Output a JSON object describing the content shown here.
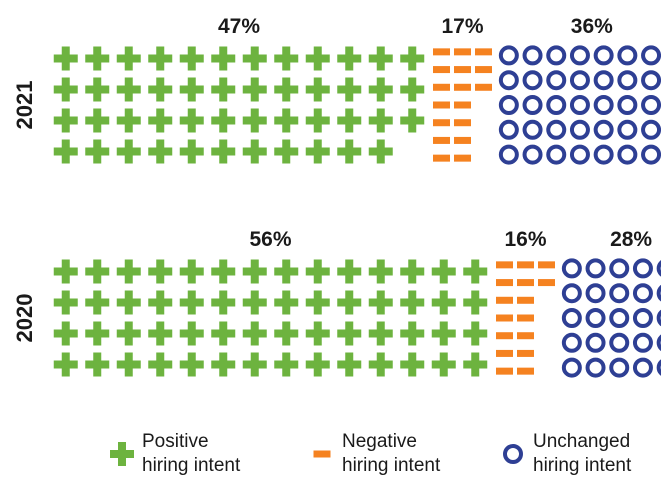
{
  "chart_data": {
    "type": "waffle",
    "series": [
      {
        "key": "positive",
        "name": "Positive hiring intent",
        "label_line1": "Positive",
        "label_line2": "hiring intent",
        "color": "#6db33f",
        "icon": "plus-icon"
      },
      {
        "key": "negative",
        "name": "Negative hiring intent",
        "label_line1": "Negative",
        "label_line2": "hiring intent",
        "color": "#f58220",
        "icon": "dash-icon"
      },
      {
        "key": "unchanged",
        "name": "Unchanged hiring intent",
        "label_line1": "Unchanged",
        "label_line2": "hiring intent",
        "color": "#2e3f94",
        "icon": "ring-icon"
      }
    ],
    "groups": [
      {
        "year": "2021",
        "values": {
          "positive": 47,
          "negative": 17,
          "unchanged": 36
        },
        "labels": {
          "positive": "47%",
          "negative": "17%",
          "unchanged": "36%"
        }
      },
      {
        "year": "2020",
        "values": {
          "positive": 56,
          "negative": 16,
          "unchanged": 28
        },
        "labels": {
          "positive": "56%",
          "negative": "16%",
          "unchanged": "28%"
        }
      }
    ]
  }
}
